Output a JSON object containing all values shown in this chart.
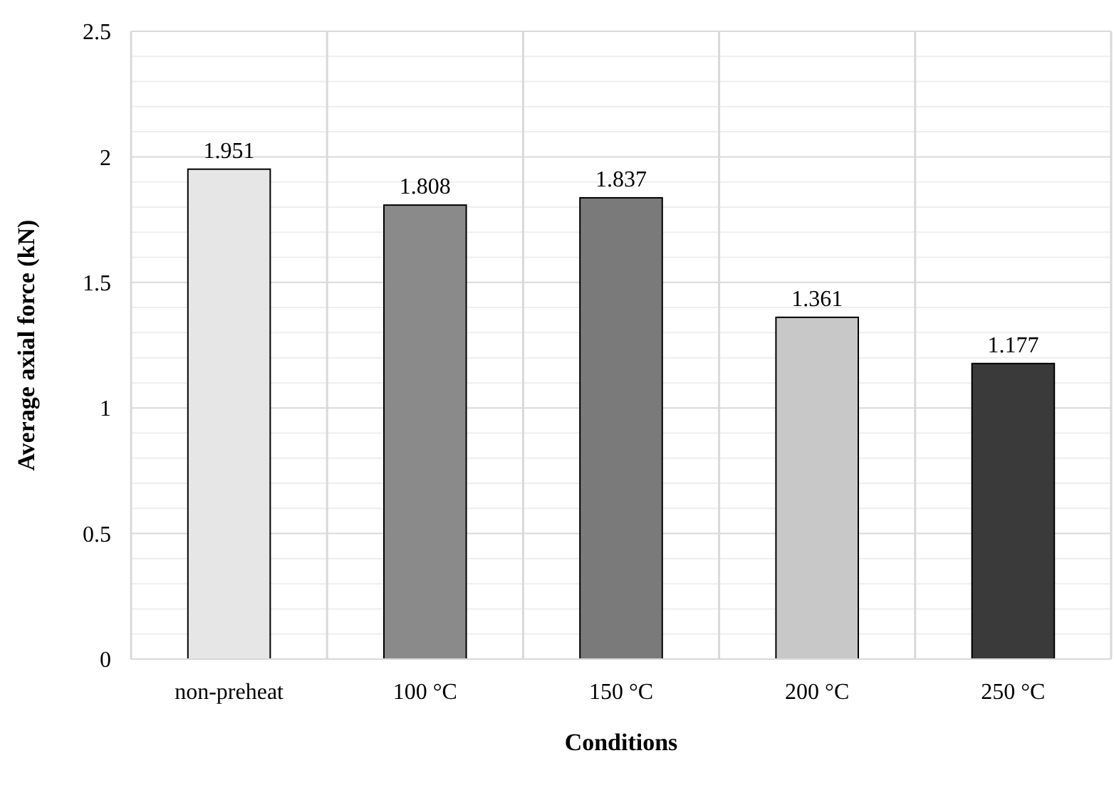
{
  "chart_data": {
    "type": "bar",
    "xlabel": "Conditions",
    "ylabel": "Average axial force (kN)",
    "categories": [
      "non-preheat",
      "100 °C",
      "150 °C",
      "200 °C",
      "250 °C"
    ],
    "values": [
      1.951,
      1.808,
      1.837,
      1.361,
      1.177
    ],
    "colors": [
      "#e6e6e6",
      "#8a8a8a",
      "#7a7a7a",
      "#c8c8c8",
      "#3a3a3a"
    ],
    "data_labels": true,
    "ylim": [
      0,
      2.5
    ],
    "yticks": [
      0,
      {
        "value": 0.1,
        "label": null
      },
      {
        "value": 0.2,
        "label": null
      },
      {
        "value": 0.3,
        "label": null
      },
      {
        "value": 0.4,
        "label": null
      },
      0.5,
      {
        "value": 0.6,
        "label": null
      },
      {
        "value": 0.7,
        "label": null
      },
      {
        "value": 0.8,
        "label": null
      },
      {
        "value": 0.9,
        "label": null
      },
      1,
      {
        "value": 1.1,
        "label": null
      },
      {
        "value": 1.2,
        "label": null
      },
      {
        "value": 1.3,
        "label": null
      },
      {
        "value": 1.4,
        "label": null
      },
      1.5,
      {
        "value": 1.6,
        "label": null
      },
      {
        "value": 1.7,
        "label": null
      },
      {
        "value": 1.8,
        "label": null
      },
      {
        "value": 1.9,
        "label": null
      },
      2,
      {
        "value": 2.1,
        "label": null
      },
      {
        "value": 2.2,
        "label": null
      },
      {
        "value": 2.3,
        "label": null
      },
      {
        "value": 2.4,
        "label": null
      },
      2.5
    ],
    "grid": true
  }
}
